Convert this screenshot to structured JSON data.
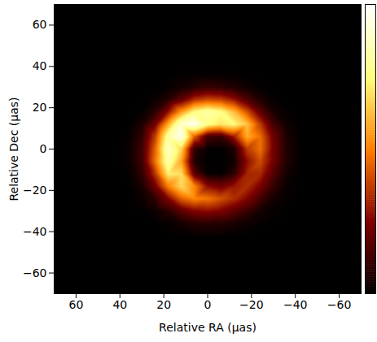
{
  "chart_data": {
    "type": "heatmap",
    "x_label": "Relative RA (μas)",
    "y_label": "Relative Dec (μas)",
    "xlim": [
      70,
      -70
    ],
    "ylim": [
      -70,
      70
    ],
    "xticks": [
      60,
      40,
      20,
      0,
      {
        "value": -20,
        "label": "−20"
      },
      {
        "value": -40,
        "label": "−40"
      },
      {
        "value": -60,
        "label": "−60"
      }
    ],
    "yticks": [
      {
        "value": -60,
        "label": "−60"
      },
      {
        "value": -40,
        "label": "−40"
      },
      {
        "value": -20,
        "label": "−20"
      },
      0,
      20,
      40,
      60
    ],
    "x": [
      42,
      36,
      30,
      24,
      18,
      12,
      6,
      0,
      -6,
      -12,
      -18,
      -24,
      -30,
      -36,
      -42
    ],
    "y": [
      42,
      36,
      30,
      24,
      18,
      12,
      6,
      0,
      -6,
      -12,
      -18,
      -24,
      -30,
      -36,
      -42
    ],
    "z": [
      [
        0,
        0,
        0,
        0,
        0,
        0,
        0,
        0,
        0,
        0,
        0,
        0,
        0,
        0,
        0
      ],
      [
        0,
        0,
        0,
        0,
        0,
        0.01,
        0.01,
        0.01,
        0.01,
        0.01,
        0,
        0,
        0,
        0,
        0
      ],
      [
        0,
        0,
        0,
        0,
        0.01,
        0.04,
        0.07,
        0.1,
        0.09,
        0.06,
        0.03,
        0.01,
        0,
        0,
        0
      ],
      [
        0,
        0,
        0,
        0.02,
        0.08,
        0.19,
        0.34,
        0.39,
        0.37,
        0.29,
        0.15,
        0.06,
        0.01,
        0,
        0
      ],
      [
        0,
        0,
        0.01,
        0.08,
        0.28,
        0.55,
        0.76,
        0.83,
        0.77,
        0.62,
        0.41,
        0.19,
        0.05,
        0.01,
        0
      ],
      [
        0,
        0,
        0.05,
        0.22,
        0.58,
        0.91,
        0.97,
        0.77,
        0.7,
        0.75,
        0.63,
        0.37,
        0.13,
        0.03,
        0
      ],
      [
        0,
        0.01,
        0.09,
        0.37,
        0.82,
        0.97,
        0.43,
        0.13,
        0.11,
        0.3,
        0.59,
        0.47,
        0.21,
        0.05,
        0.01
      ],
      [
        0,
        0.02,
        0.12,
        0.44,
        0.9,
        0.67,
        0.09,
        0.01,
        0,
        0.05,
        0.36,
        0.47,
        0.23,
        0.06,
        0.01
      ],
      [
        0,
        0.02,
        0.12,
        0.47,
        0.85,
        0.57,
        0.06,
        0,
        0,
        0.03,
        0.27,
        0.4,
        0.22,
        0.06,
        0.01
      ],
      [
        0,
        0.01,
        0.09,
        0.35,
        0.72,
        0.69,
        0.18,
        0.02,
        0.01,
        0.09,
        0.32,
        0.33,
        0.16,
        0.04,
        0
      ],
      [
        0,
        0,
        0.05,
        0.22,
        0.5,
        0.68,
        0.51,
        0.27,
        0.22,
        0.29,
        0.34,
        0.24,
        0.1,
        0.02,
        0
      ],
      [
        0,
        0,
        0.02,
        0.09,
        0.25,
        0.44,
        0.51,
        0.48,
        0.41,
        0.34,
        0.25,
        0.13,
        0.04,
        0.01,
        0
      ],
      [
        0,
        0,
        0,
        0.02,
        0.08,
        0.18,
        0.25,
        0.27,
        0.24,
        0.18,
        0.11,
        0.04,
        0.01,
        0,
        0
      ],
      [
        0,
        0,
        0,
        0,
        0.01,
        0.04,
        0.07,
        0.08,
        0.07,
        0.05,
        0.03,
        0.01,
        0,
        0,
        0
      ],
      [
        0,
        0,
        0,
        0,
        0,
        0,
        0.01,
        0.01,
        0.01,
        0.01,
        0,
        0,
        0,
        0,
        0
      ]
    ],
    "color_range": [
      0,
      1
    ]
  }
}
